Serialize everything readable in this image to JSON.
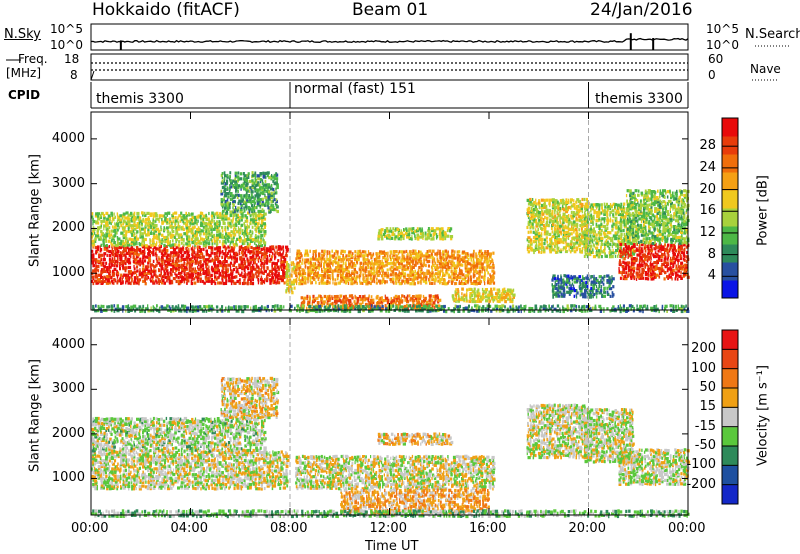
{
  "header": {
    "station": "Hokkaido (fitACF)",
    "beam": "Beam 01",
    "date": "24/Jan/2016"
  },
  "status_panels": {
    "nsky_label": "N.Sky",
    "nsky_ticks": [
      "10^5",
      "10^0"
    ],
    "nsearch_label": "N.Search",
    "nsearch_ticks": [
      "10^5",
      "10^0"
    ],
    "freq_label_1": "Freq.",
    "freq_label_2": "[MHz]",
    "freq_ticks": [
      "18",
      "8"
    ],
    "nave_label": "Nave",
    "nave_ticks": [
      "60",
      "0"
    ],
    "cpid_label": "CPID",
    "modes": [
      {
        "name": "themis 3300",
        "start": 0
      },
      {
        "name": "normal (fast) 151",
        "start": 8
      },
      {
        "name": "themis 3300",
        "start": 20
      }
    ]
  },
  "chart_data": [
    {
      "type": "heatmap",
      "name": "power",
      "ylabel": "Slant Range [km]",
      "xlabel": "Time UT",
      "x_ticks": [
        "00:00",
        "04:00",
        "08:00",
        "12:00",
        "16:00",
        "20:00",
        "00:00"
      ],
      "x_range_hours": [
        0,
        24
      ],
      "y_ticks": [
        "1000",
        "2000",
        "3000",
        "4000"
      ],
      "ylim": [
        180,
        4600
      ],
      "colorbar": {
        "label": "Power [dB]",
        "ticks": [
          "4",
          "8",
          "12",
          "16",
          "20",
          "24",
          "28"
        ],
        "colors": [
          "#0a14e6",
          "#2850a0",
          "#2e8a5a",
          "#4db846",
          "#a8d23c",
          "#f0c81e",
          "#f5a014",
          "#f06e0a",
          "#e83c0a",
          "#e80a0a"
        ]
      },
      "regions": [
        {
          "t0": 0.0,
          "t1": 7.9,
          "r0": 800,
          "r1": 1650,
          "level": 8.6
        },
        {
          "t0": 0.0,
          "t1": 7.0,
          "r0": 1650,
          "r1": 2400,
          "level": 4.0
        },
        {
          "t0": 5.2,
          "t1": 7.5,
          "r0": 2400,
          "r1": 3300,
          "level": 2.6
        },
        {
          "t0": 7.8,
          "t1": 8.2,
          "r0": 600,
          "r1": 1300,
          "level": 5.0
        },
        {
          "t0": 8.2,
          "t1": 16.2,
          "r0": 800,
          "r1": 1550,
          "level": 6.2
        },
        {
          "t0": 8.4,
          "t1": 14.0,
          "r0": 250,
          "r1": 550,
          "level": 7.0
        },
        {
          "t0": 11.5,
          "t1": 14.5,
          "r0": 1800,
          "r1": 2050,
          "level": 4.2
        },
        {
          "t0": 14.5,
          "t1": 17.0,
          "r0": 400,
          "r1": 700,
          "level": 5.0
        },
        {
          "t0": 17.5,
          "t1": 20.0,
          "r0": 1500,
          "r1": 2700,
          "level": 4.5
        },
        {
          "t0": 19.8,
          "t1": 21.8,
          "r0": 1400,
          "r1": 2600,
          "level": 4.0
        },
        {
          "t0": 21.2,
          "t1": 24.0,
          "r0": 900,
          "r1": 1700,
          "level": 8.4
        },
        {
          "t0": 21.5,
          "t1": 24.0,
          "r0": 1700,
          "r1": 2900,
          "level": 3.5
        },
        {
          "t0": 18.5,
          "t1": 21.0,
          "r0": 500,
          "r1": 1000,
          "level": 1.6
        },
        {
          "t0": 0.0,
          "t1": 24.0,
          "r0": 180,
          "r1": 330,
          "level": 2.4
        }
      ]
    },
    {
      "type": "heatmap",
      "name": "velocity",
      "ylabel": "Slant Range [km]",
      "xlabel": "Time UT",
      "x_ticks": [
        "00:00",
        "04:00",
        "08:00",
        "12:00",
        "16:00",
        "20:00",
        "00:00"
      ],
      "x_range_hours": [
        0,
        24
      ],
      "y_ticks": [
        "1000",
        "2000",
        "3000",
        "4000"
      ],
      "ylim": [
        180,
        4600
      ],
      "colorbar": {
        "label": "Velocity [m s⁻¹]",
        "ticks": [
          "200",
          "100",
          "50",
          "15",
          "-15",
          "-50",
          "-100",
          "-200"
        ],
        "colors": [
          "#1428c8",
          "#1e50a0",
          "#2e8a5a",
          "#5ac83c",
          "#c8c8c8",
          "#f0a014",
          "#f07814",
          "#e84614",
          "#e81414"
        ]
      },
      "regions": [
        {
          "t0": 0.0,
          "t1": 7.9,
          "r0": 800,
          "r1": 1650,
          "level": 4.0
        },
        {
          "t0": 0.0,
          "t1": 7.0,
          "r0": 1650,
          "r1": 2400,
          "level": 3.6
        },
        {
          "t0": 5.2,
          "t1": 7.5,
          "r0": 2400,
          "r1": 3300,
          "level": 4.5
        },
        {
          "t0": 8.2,
          "t1": 16.2,
          "r0": 800,
          "r1": 1550,
          "level": 4.0
        },
        {
          "t0": 10.0,
          "t1": 16.0,
          "r0": 250,
          "r1": 800,
          "level": 5.2
        },
        {
          "t0": 11.5,
          "t1": 14.5,
          "r0": 1800,
          "r1": 2050,
          "level": 4.6
        },
        {
          "t0": 17.5,
          "t1": 20.0,
          "r0": 1500,
          "r1": 2700,
          "level": 4.0
        },
        {
          "t0": 19.8,
          "t1": 21.8,
          "r0": 1400,
          "r1": 2600,
          "level": 3.8
        },
        {
          "t0": 21.2,
          "t1": 24.0,
          "r0": 900,
          "r1": 1700,
          "level": 3.8
        },
        {
          "t0": 0.0,
          "t1": 24.0,
          "r0": 180,
          "r1": 330,
          "level": 3.0
        }
      ]
    }
  ]
}
